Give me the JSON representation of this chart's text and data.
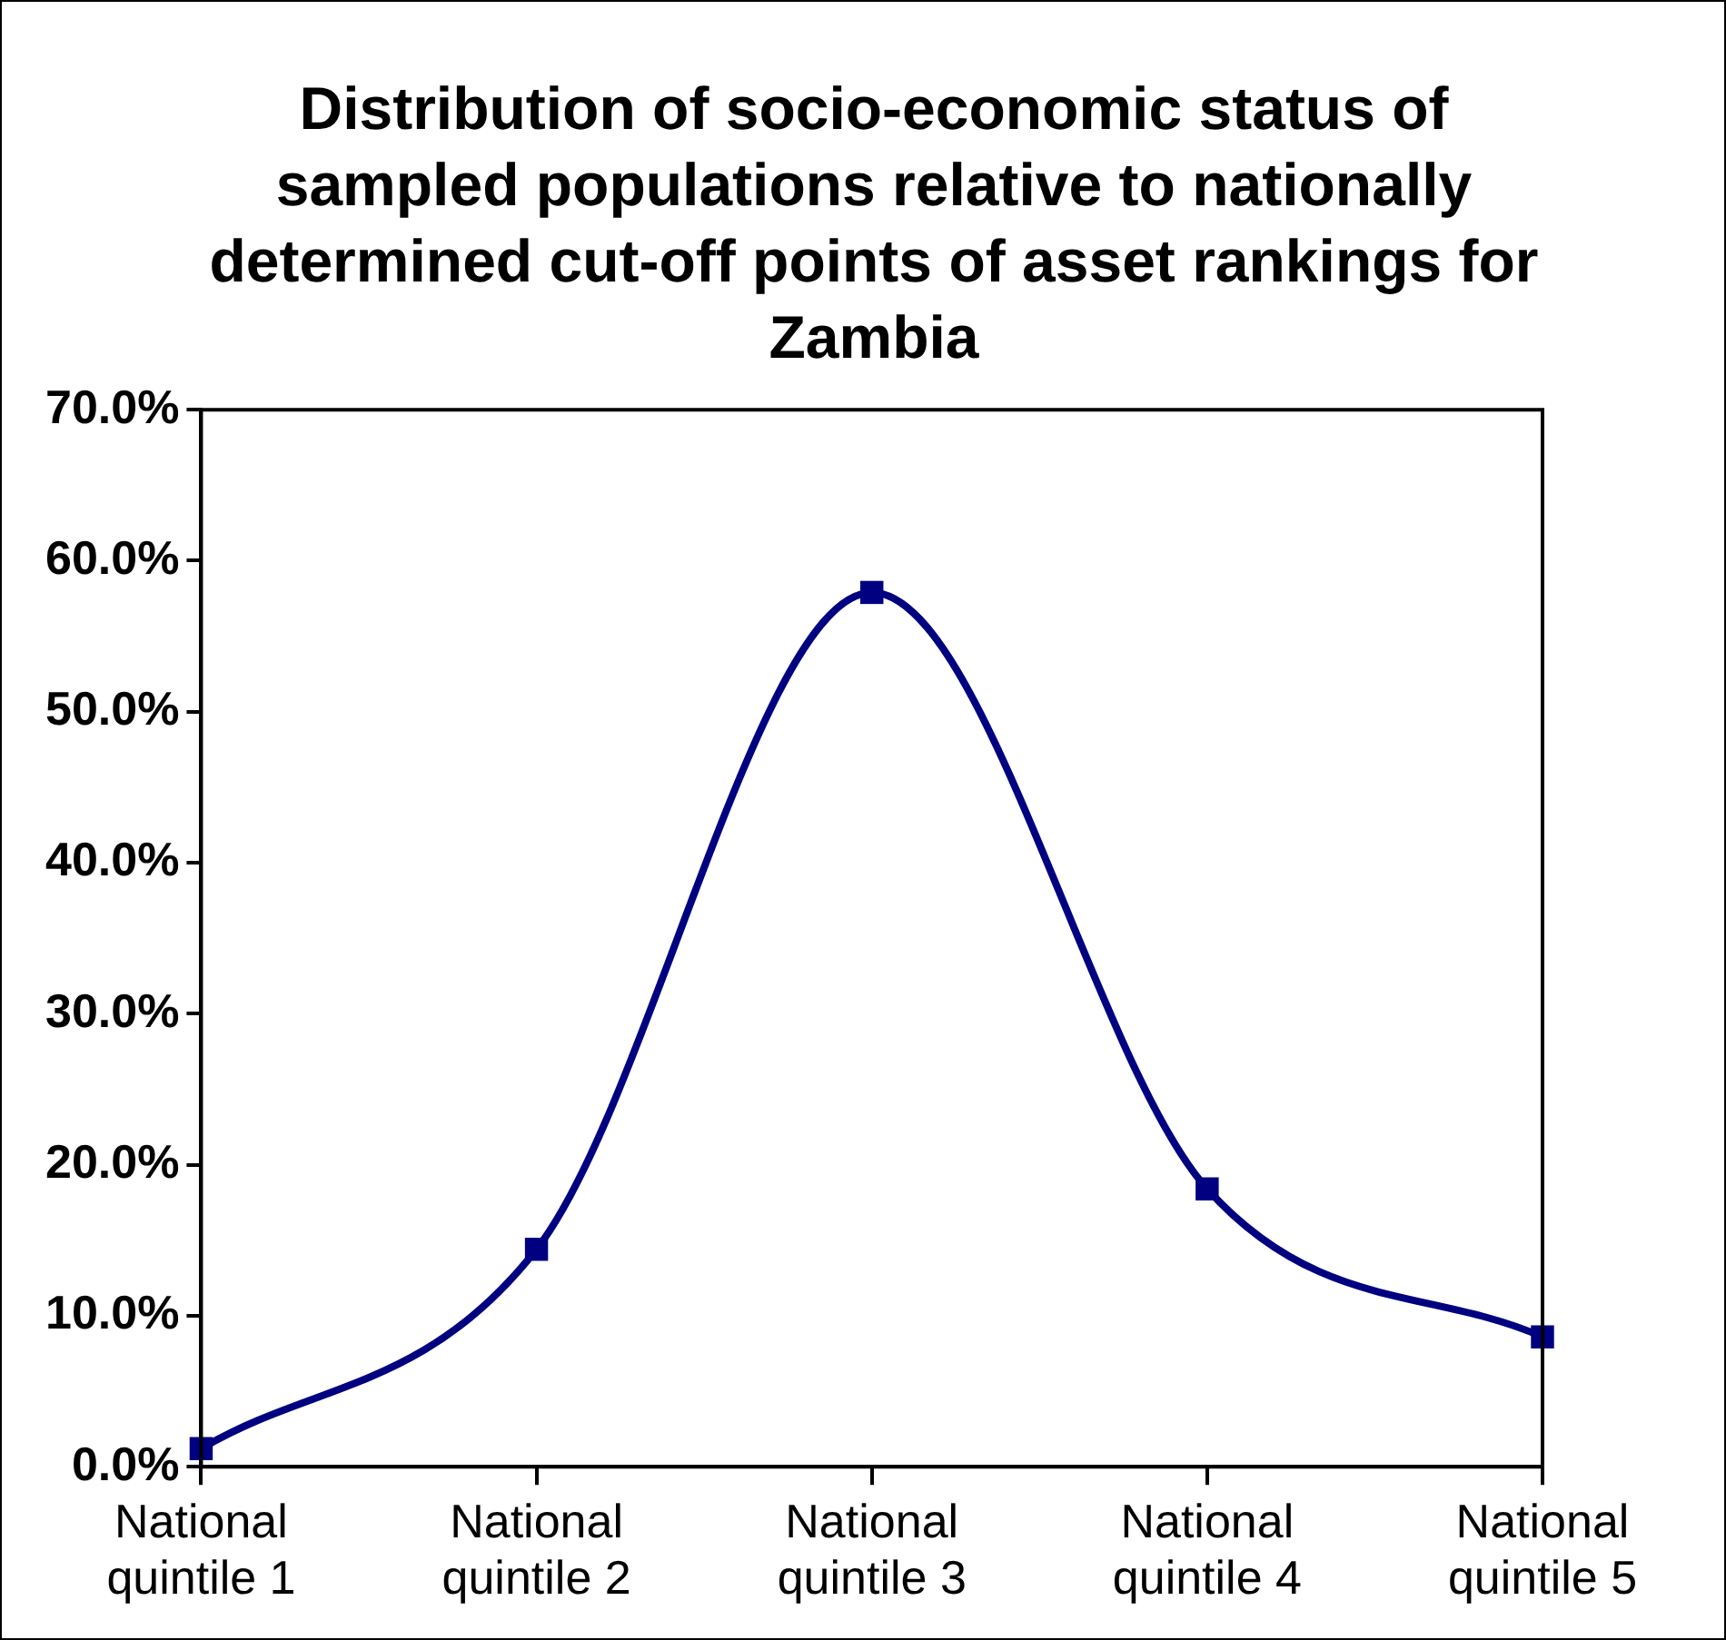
{
  "chart_data": {
    "type": "line",
    "title": "Distribution of socio-economic status of sampled populations relative to nationally determined cut-off points of asset rankings for Zambia",
    "categories": [
      "National quintile 1",
      "National quintile 2",
      "National quintile 3",
      "National quintile 4",
      "National quintile 5"
    ],
    "series": [
      {
        "color": "#000080",
        "values": [
          1.2,
          14.4,
          57.9,
          18.4,
          8.6
        ]
      }
    ],
    "ylim": [
      0,
      70
    ],
    "yticks": [
      {
        "value": 0,
        "label": "0.0%"
      },
      {
        "value": 10,
        "label": "10.0%"
      },
      {
        "value": 20,
        "label": "20.0%"
      },
      {
        "value": 30,
        "label": "30.0%"
      },
      {
        "value": 40,
        "label": "40.0%"
      },
      {
        "value": 50,
        "label": "50.0%"
      },
      {
        "value": 60,
        "label": "60.0%"
      },
      {
        "value": 70,
        "label": "70.0%"
      }
    ],
    "grid": false,
    "legend": false,
    "marker": "square",
    "line_style": "solid"
  }
}
